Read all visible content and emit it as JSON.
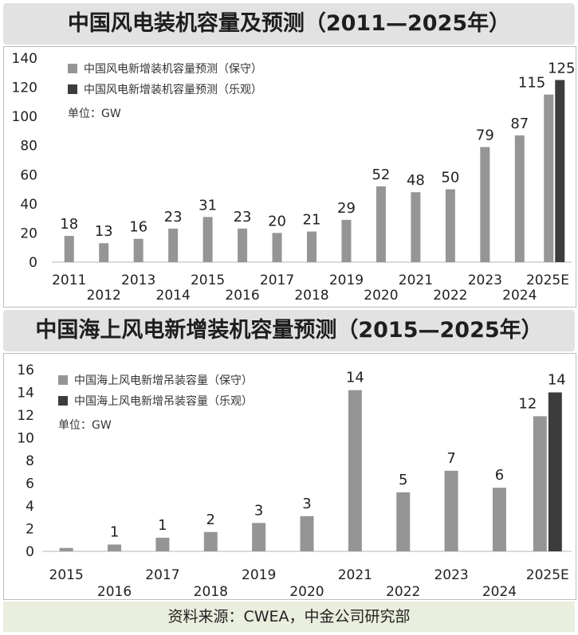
{
  "source": "资料来源：CWEA，中金公司研究部",
  "charts": [
    {
      "title": "中国风电装机容量及预测（2011—2025年）",
      "unit": "单位：GW",
      "legend": [
        {
          "label": "中国风电新增装机容量预测（保守）",
          "color": "#959595"
        },
        {
          "label": "中国风电新增装机容量预测（乐观）",
          "color": "#3c3c3c"
        }
      ]
    },
    {
      "title": "中国海上风电新增装机容量预测（2015—2025年）",
      "unit": "单位：GW",
      "legend": [
        {
          "label": "中国海上风电新增吊装容量（保守）",
          "color": "#959595"
        },
        {
          "label": "中国海上风电新增吊装容量（乐观）",
          "color": "#3c3c3c"
        }
      ]
    }
  ],
  "chart_data": [
    {
      "type": "bar",
      "title": "中国风电装机容量及预测（2011—2025年）",
      "unit": "单位：GW",
      "categories": [
        "2011",
        "2012",
        "2013",
        "2014",
        "2015",
        "2016",
        "2017",
        "2018",
        "2019",
        "2020",
        "2021",
        "2022",
        "2023",
        "2024",
        "2025E"
      ],
      "series": [
        {
          "name": "中国风电新增装机容量预测（保守）",
          "color": "#959595",
          "values": [
            18,
            13,
            16,
            23,
            31,
            23,
            20,
            21,
            29,
            52,
            48,
            50,
            79,
            87,
            115
          ]
        },
        {
          "name": "中国风电新增装机容量预测（乐观）",
          "color": "#3c3c3c",
          "values": [
            null,
            null,
            null,
            null,
            null,
            null,
            null,
            null,
            null,
            null,
            null,
            null,
            null,
            null,
            125
          ]
        }
      ],
      "ylim": [
        0,
        140
      ],
      "yticks": [
        0,
        20,
        40,
        60,
        80,
        100,
        120,
        140
      ],
      "grid": false,
      "legend_position": "top-left"
    },
    {
      "type": "bar",
      "title": "中国海上风电新增装机容量预测（2015—2025年）",
      "unit": "单位：GW",
      "categories": [
        "2015",
        "2016",
        "2017",
        "2018",
        "2019",
        "2020",
        "2021",
        "2022",
        "2023",
        "2024",
        "2025E"
      ],
      "series": [
        {
          "name": "中国海上风电新增吊装容量（保守）",
          "color": "#959595",
          "values": [
            0.3,
            0.6,
            1.2,
            1.7,
            2.5,
            3.1,
            14.2,
            5.2,
            7.1,
            5.6,
            11.9
          ]
        },
        {
          "name": "中国海上风电新增吊装容量（乐观）",
          "color": "#3c3c3c",
          "values": [
            null,
            null,
            null,
            null,
            null,
            null,
            null,
            null,
            null,
            null,
            14
          ]
        }
      ],
      "data_labels": [
        "",
        "1",
        "1",
        "2",
        "3",
        "3",
        "14",
        "5",
        "7",
        "6",
        "12"
      ],
      "data_labels_optimistic": [
        "",
        "",
        "",
        "",
        "",
        "",
        "",
        "",
        "",
        "",
        "14"
      ],
      "ylim": [
        0,
        16
      ],
      "yticks": [
        0,
        2,
        4,
        6,
        8,
        10,
        12,
        14,
        16
      ],
      "grid": false,
      "legend_position": "top-left"
    }
  ]
}
